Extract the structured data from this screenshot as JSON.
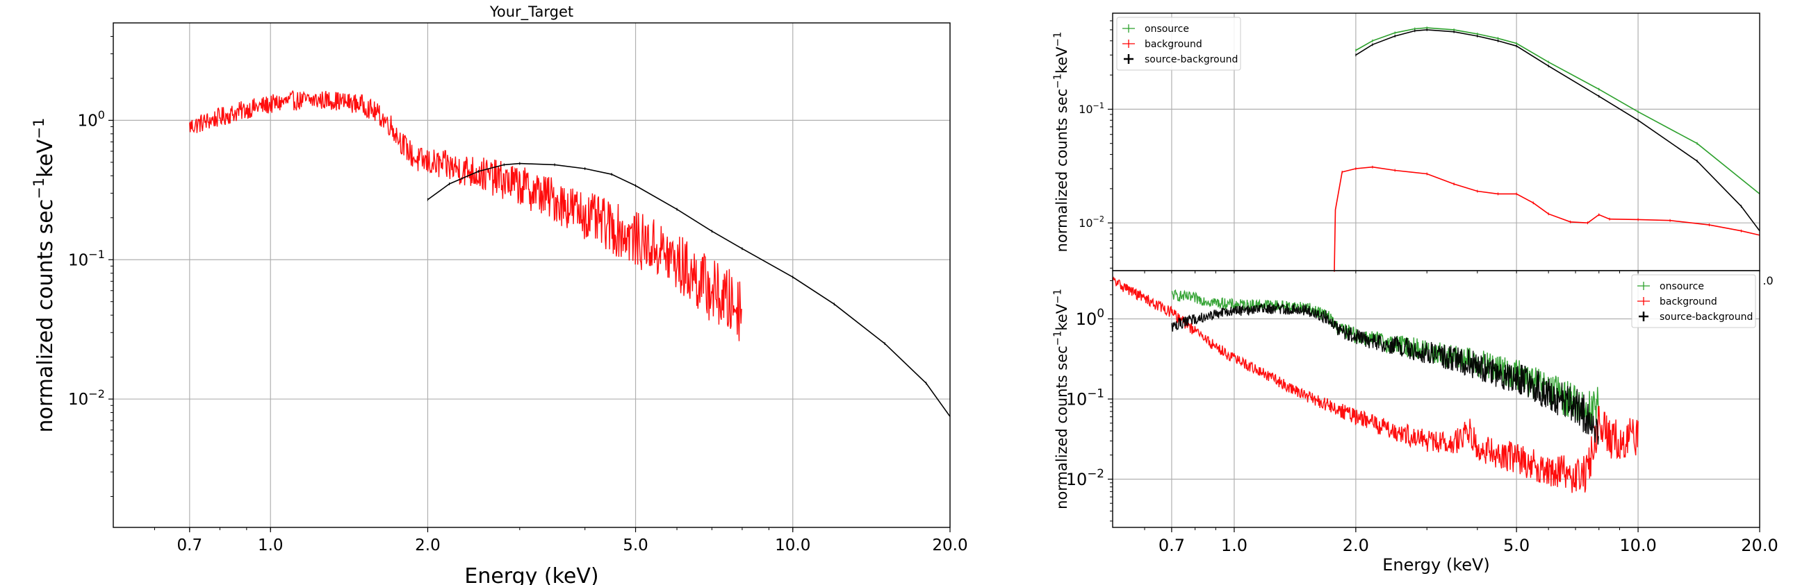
{
  "chart_data": [
    {
      "id": "main",
      "type": "line",
      "title": "Your_Target",
      "xlabel": "Energy (keV)",
      "ylabel": "normalized counts sec",
      "ylabel_sup1": "−1",
      "ylabel_mid": "keV",
      "ylabel_sup2": "−1",
      "x_scale": "log",
      "y_scale": "log",
      "xlim": [
        0.5,
        20.0
      ],
      "ylim": [
        0.0012,
        5.0
      ],
      "grid": true,
      "legend": "none",
      "xticks": [
        "0.7",
        "1.0",
        "2.0",
        "5.0",
        "10.0",
        "20.0"
      ],
      "xtick_values": [
        0.7,
        1.0,
        2.0,
        5.0,
        10.0,
        20.0
      ],
      "yticks": [
        {
          "value": 1.0,
          "base": "10",
          "exp": "0"
        },
        {
          "value": 0.1,
          "base": "10",
          "exp": "−1"
        },
        {
          "value": 0.01,
          "base": "10",
          "exp": "−2"
        }
      ],
      "series": [
        {
          "color": "#ff0000",
          "noisy": true,
          "points": [
            [
              0.7,
              0.9
            ],
            [
              0.8,
              1.05
            ],
            [
              0.9,
              1.2
            ],
            [
              1.0,
              1.3
            ],
            [
              1.1,
              1.38
            ],
            [
              1.3,
              1.4
            ],
            [
              1.5,
              1.3
            ],
            [
              1.6,
              1.12
            ],
            [
              1.7,
              0.92
            ],
            [
              1.8,
              0.66
            ],
            [
              1.9,
              0.52
            ],
            [
              2.0,
              0.5
            ],
            [
              2.5,
              0.42
            ],
            [
              3.0,
              0.34
            ],
            [
              3.5,
              0.27
            ],
            [
              4.0,
              0.21
            ],
            [
              4.5,
              0.17
            ],
            [
              5.0,
              0.14
            ],
            [
              5.5,
              0.12
            ],
            [
              6.0,
              0.095
            ],
            [
              6.5,
              0.075
            ],
            [
              7.0,
              0.06
            ],
            [
              7.5,
              0.05
            ],
            [
              8.0,
              0.045
            ]
          ]
        },
        {
          "color": "#000000",
          "noisy": false,
          "points": [
            [
              2.0,
              0.27
            ],
            [
              2.2,
              0.35
            ],
            [
              2.5,
              0.43
            ],
            [
              2.8,
              0.48
            ],
            [
              3.0,
              0.49
            ],
            [
              3.5,
              0.48
            ],
            [
              4.0,
              0.45
            ],
            [
              4.5,
              0.41
            ],
            [
              5.0,
              0.34
            ],
            [
              6.0,
              0.23
            ],
            [
              7.0,
              0.16
            ],
            [
              8.0,
              0.12
            ],
            [
              10.0,
              0.075
            ],
            [
              12.0,
              0.048
            ],
            [
              15.0,
              0.025
            ],
            [
              18.0,
              0.013
            ],
            [
              20.0,
              0.0075
            ]
          ]
        }
      ]
    },
    {
      "id": "top-right",
      "type": "line",
      "ylabel": "normalized counts sec",
      "ylabel_sup1": "−1",
      "ylabel_mid": "keV",
      "ylabel_sup2": "−1",
      "x_scale": "log",
      "y_scale": "log",
      "xlim": [
        0.5,
        20.0
      ],
      "ylim": [
        0.0038,
        0.7
      ],
      "grid": true,
      "legend": "top-left",
      "visible_xticks": [
        {
          "label": ".0",
          "value": 20.0
        }
      ],
      "yticks": [
        {
          "value": 0.1,
          "base": "10",
          "exp": "−1"
        },
        {
          "value": 0.01,
          "base": "10",
          "exp": "−2"
        }
      ],
      "series": [
        {
          "name": "onsource",
          "color": "#2ca02c",
          "noisy": false,
          "points": [
            [
              2.0,
              0.33
            ],
            [
              2.2,
              0.4
            ],
            [
              2.5,
              0.47
            ],
            [
              2.8,
              0.51
            ],
            [
              3.0,
              0.52
            ],
            [
              3.5,
              0.5
            ],
            [
              4.0,
              0.46
            ],
            [
              4.5,
              0.42
            ],
            [
              5.0,
              0.38
            ],
            [
              6.0,
              0.26
            ],
            [
              8.0,
              0.15
            ],
            [
              10.0,
              0.095
            ],
            [
              14.0,
              0.05
            ],
            [
              20.0,
              0.018
            ]
          ]
        },
        {
          "name": "background",
          "color": "#ff0000",
          "noisy": false,
          "points": [
            [
              1.77,
              0.0038
            ],
            [
              1.78,
              0.013
            ],
            [
              1.85,
              0.028
            ],
            [
              2.0,
              0.03
            ],
            [
              2.2,
              0.031
            ],
            [
              2.5,
              0.029
            ],
            [
              3.0,
              0.027
            ],
            [
              3.5,
              0.022
            ],
            [
              4.0,
              0.019
            ],
            [
              4.5,
              0.018
            ],
            [
              5.0,
              0.018
            ],
            [
              5.5,
              0.015
            ],
            [
              6.0,
              0.012
            ],
            [
              6.8,
              0.0102
            ],
            [
              7.5,
              0.01
            ],
            [
              8.0,
              0.0118
            ],
            [
              8.5,
              0.0108
            ],
            [
              10.0,
              0.0107
            ],
            [
              12.0,
              0.0105
            ],
            [
              15.0,
              0.0096
            ],
            [
              18.0,
              0.0085
            ],
            [
              20.0,
              0.0078
            ]
          ]
        },
        {
          "name": "source-background",
          "color": "#000000",
          "noisy": false,
          "points": [
            [
              2.0,
              0.3
            ],
            [
              2.2,
              0.37
            ],
            [
              2.5,
              0.44
            ],
            [
              2.8,
              0.49
            ],
            [
              3.0,
              0.5
            ],
            [
              3.5,
              0.48
            ],
            [
              4.0,
              0.44
            ],
            [
              4.5,
              0.4
            ],
            [
              5.0,
              0.36
            ],
            [
              6.0,
              0.24
            ],
            [
              8.0,
              0.13
            ],
            [
              10.0,
              0.08
            ],
            [
              14.0,
              0.035
            ],
            [
              18.0,
              0.014
            ],
            [
              20.0,
              0.0085
            ]
          ]
        }
      ]
    },
    {
      "id": "bottom-right",
      "type": "line",
      "xlabel": "Energy (keV)",
      "ylabel": "normalized counts sec",
      "ylabel_sup1": "−1",
      "ylabel_mid": "keV",
      "ylabel_sup2": "−1",
      "x_scale": "log",
      "y_scale": "log",
      "xlim": [
        0.5,
        20.0
      ],
      "ylim": [
        0.0025,
        4.0
      ],
      "grid": true,
      "legend": "top-right",
      "xticks": [
        "0.7",
        "1.0",
        "2.0",
        "5.0",
        "10.0",
        "20.0"
      ],
      "xtick_values": [
        0.7,
        1.0,
        2.0,
        5.0,
        10.0,
        20.0
      ],
      "yticks": [
        {
          "value": 1.0,
          "base": "10",
          "exp": "0"
        },
        {
          "value": 0.1,
          "base": "10",
          "exp": "−1"
        },
        {
          "value": 0.01,
          "base": "10",
          "exp": "−2"
        }
      ],
      "series": [
        {
          "name": "onsource",
          "color": "#2ca02c",
          "noisy": true,
          "points": [
            [
              0.7,
              2.0
            ],
            [
              0.8,
              1.8
            ],
            [
              0.9,
              1.6
            ],
            [
              1.0,
              1.5
            ],
            [
              1.2,
              1.5
            ],
            [
              1.5,
              1.4
            ],
            [
              1.7,
              1.1
            ],
            [
              1.8,
              0.78
            ],
            [
              2.0,
              0.62
            ],
            [
              2.5,
              0.48
            ],
            [
              3.0,
              0.4
            ],
            [
              4.0,
              0.28
            ],
            [
              5.0,
              0.2
            ],
            [
              6.0,
              0.13
            ],
            [
              7.0,
              0.09
            ],
            [
              7.5,
              0.07
            ],
            [
              8.0,
              0.09
            ]
          ]
        },
        {
          "name": "background",
          "color": "#ff0000",
          "noisy": true,
          "points": [
            [
              0.5,
              3.0
            ],
            [
              0.55,
              2.3
            ],
            [
              0.6,
              1.8
            ],
            [
              0.7,
              1.2
            ],
            [
              0.8,
              0.7
            ],
            [
              0.9,
              0.45
            ],
            [
              1.0,
              0.32
            ],
            [
              1.2,
              0.2
            ],
            [
              1.5,
              0.11
            ],
            [
              2.0,
              0.06
            ],
            [
              2.5,
              0.04
            ],
            [
              3.0,
              0.03
            ],
            [
              3.5,
              0.027
            ],
            [
              3.8,
              0.042
            ],
            [
              4.0,
              0.025
            ],
            [
              5.0,
              0.018
            ],
            [
              6.0,
              0.013
            ],
            [
              7.0,
              0.011
            ],
            [
              7.5,
              0.012
            ],
            [
              8.0,
              0.055
            ],
            [
              8.5,
              0.032
            ],
            [
              9.0,
              0.03
            ],
            [
              10.0,
              0.034
            ]
          ]
        },
        {
          "name": "source-background",
          "color": "#000000",
          "noisy": true,
          "points": [
            [
              0.7,
              0.8
            ],
            [
              0.8,
              1.0
            ],
            [
              0.9,
              1.15
            ],
            [
              1.0,
              1.25
            ],
            [
              1.2,
              1.35
            ],
            [
              1.5,
              1.3
            ],
            [
              1.7,
              1.05
            ],
            [
              1.8,
              0.75
            ],
            [
              2.0,
              0.6
            ],
            [
              2.5,
              0.46
            ],
            [
              3.0,
              0.38
            ],
            [
              4.0,
              0.26
            ],
            [
              5.0,
              0.18
            ],
            [
              6.0,
              0.12
            ],
            [
              7.0,
              0.08
            ],
            [
              7.5,
              0.06
            ],
            [
              8.0,
              0.04
            ]
          ]
        }
      ]
    }
  ]
}
